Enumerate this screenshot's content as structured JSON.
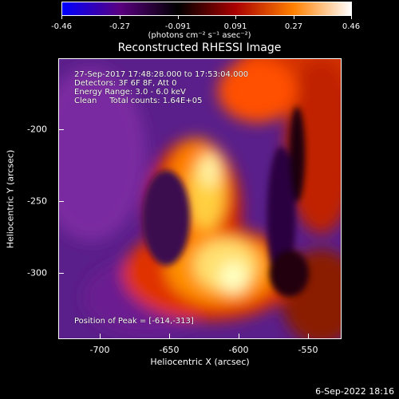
{
  "colorbar": {
    "ticks": [
      "-0.46",
      "-0.27",
      "-0.091",
      "0.091",
      "0.27",
      "0.46"
    ],
    "units": "(photons cm⁻² s⁻¹ asec⁻²)",
    "colors": [
      "#0000ff",
      "#5a0080",
      "#000000",
      "#aa0000",
      "#ff8000",
      "#ffffff"
    ]
  },
  "title": "Reconstructed RHESSI Image",
  "annotations": {
    "time": "27-Sep-2017 17:48:28.000 to 17:53:04.000",
    "detectors": "Detectors: 3F 6F 8F, Att 0",
    "energy": "Energy Range: 3.0 - 6.0 keV",
    "method": "Clean     Total counts: 1.64E+05",
    "peak": "Position of Peak = [-614,-313]"
  },
  "axes": {
    "xlabel": "Heliocentric X (arcsec)",
    "ylabel": "Heliocentric Y (arcsec)",
    "xticks": [
      "-700",
      "-650",
      "-600",
      "-550"
    ],
    "yticks": [
      "-200",
      "-250",
      "-300"
    ],
    "xrange": [
      -728,
      -533
    ],
    "yrange": [
      -346,
      -152
    ]
  },
  "footer": {
    "date": "6-Sep-2022 18:16"
  }
}
